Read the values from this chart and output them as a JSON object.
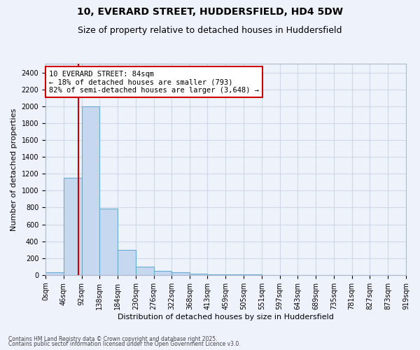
{
  "title": "10, EVERARD STREET, HUDDERSFIELD, HD4 5DW",
  "subtitle": "Size of property relative to detached houses in Huddersfield",
  "xlabel": "Distribution of detached houses by size in Huddersfield",
  "ylabel": "Number of detached properties",
  "footnote1": "Contains HM Land Registry data © Crown copyright and database right 2025.",
  "footnote2": "Contains public sector information licensed under the Open Government Licence v3.0.",
  "bin_edges": [
    0,
    46,
    92,
    138,
    184,
    230,
    276,
    322,
    368,
    413,
    459,
    505,
    551,
    597,
    643,
    689,
    735,
    781,
    827,
    873,
    919
  ],
  "bar_heights": [
    30,
    1150,
    2000,
    790,
    300,
    100,
    50,
    30,
    15,
    8,
    5,
    3,
    2,
    2,
    2,
    1,
    1,
    1,
    1,
    1
  ],
  "bar_color": "#c5d8f0",
  "bar_edge_color": "#6aabd2",
  "property_size": 84,
  "vline_color": "#cc0000",
  "annotation_line1": "10 EVERARD STREET: 84sqm",
  "annotation_line2": "← 18% of detached houses are smaller (793)",
  "annotation_line3": "82% of semi-detached houses are larger (3,648) →",
  "annotation_box_color": "#ffffff",
  "annotation_box_edge": "#cc0000",
  "ylim": [
    0,
    2500
  ],
  "background_color": "#eef2fb",
  "grid_color": "#d0d8e8",
  "title_fontsize": 10,
  "subtitle_fontsize": 9,
  "tick_label_fontsize": 7,
  "ylabel_fontsize": 8,
  "xlabel_fontsize": 8,
  "annotation_fontsize": 7.5
}
